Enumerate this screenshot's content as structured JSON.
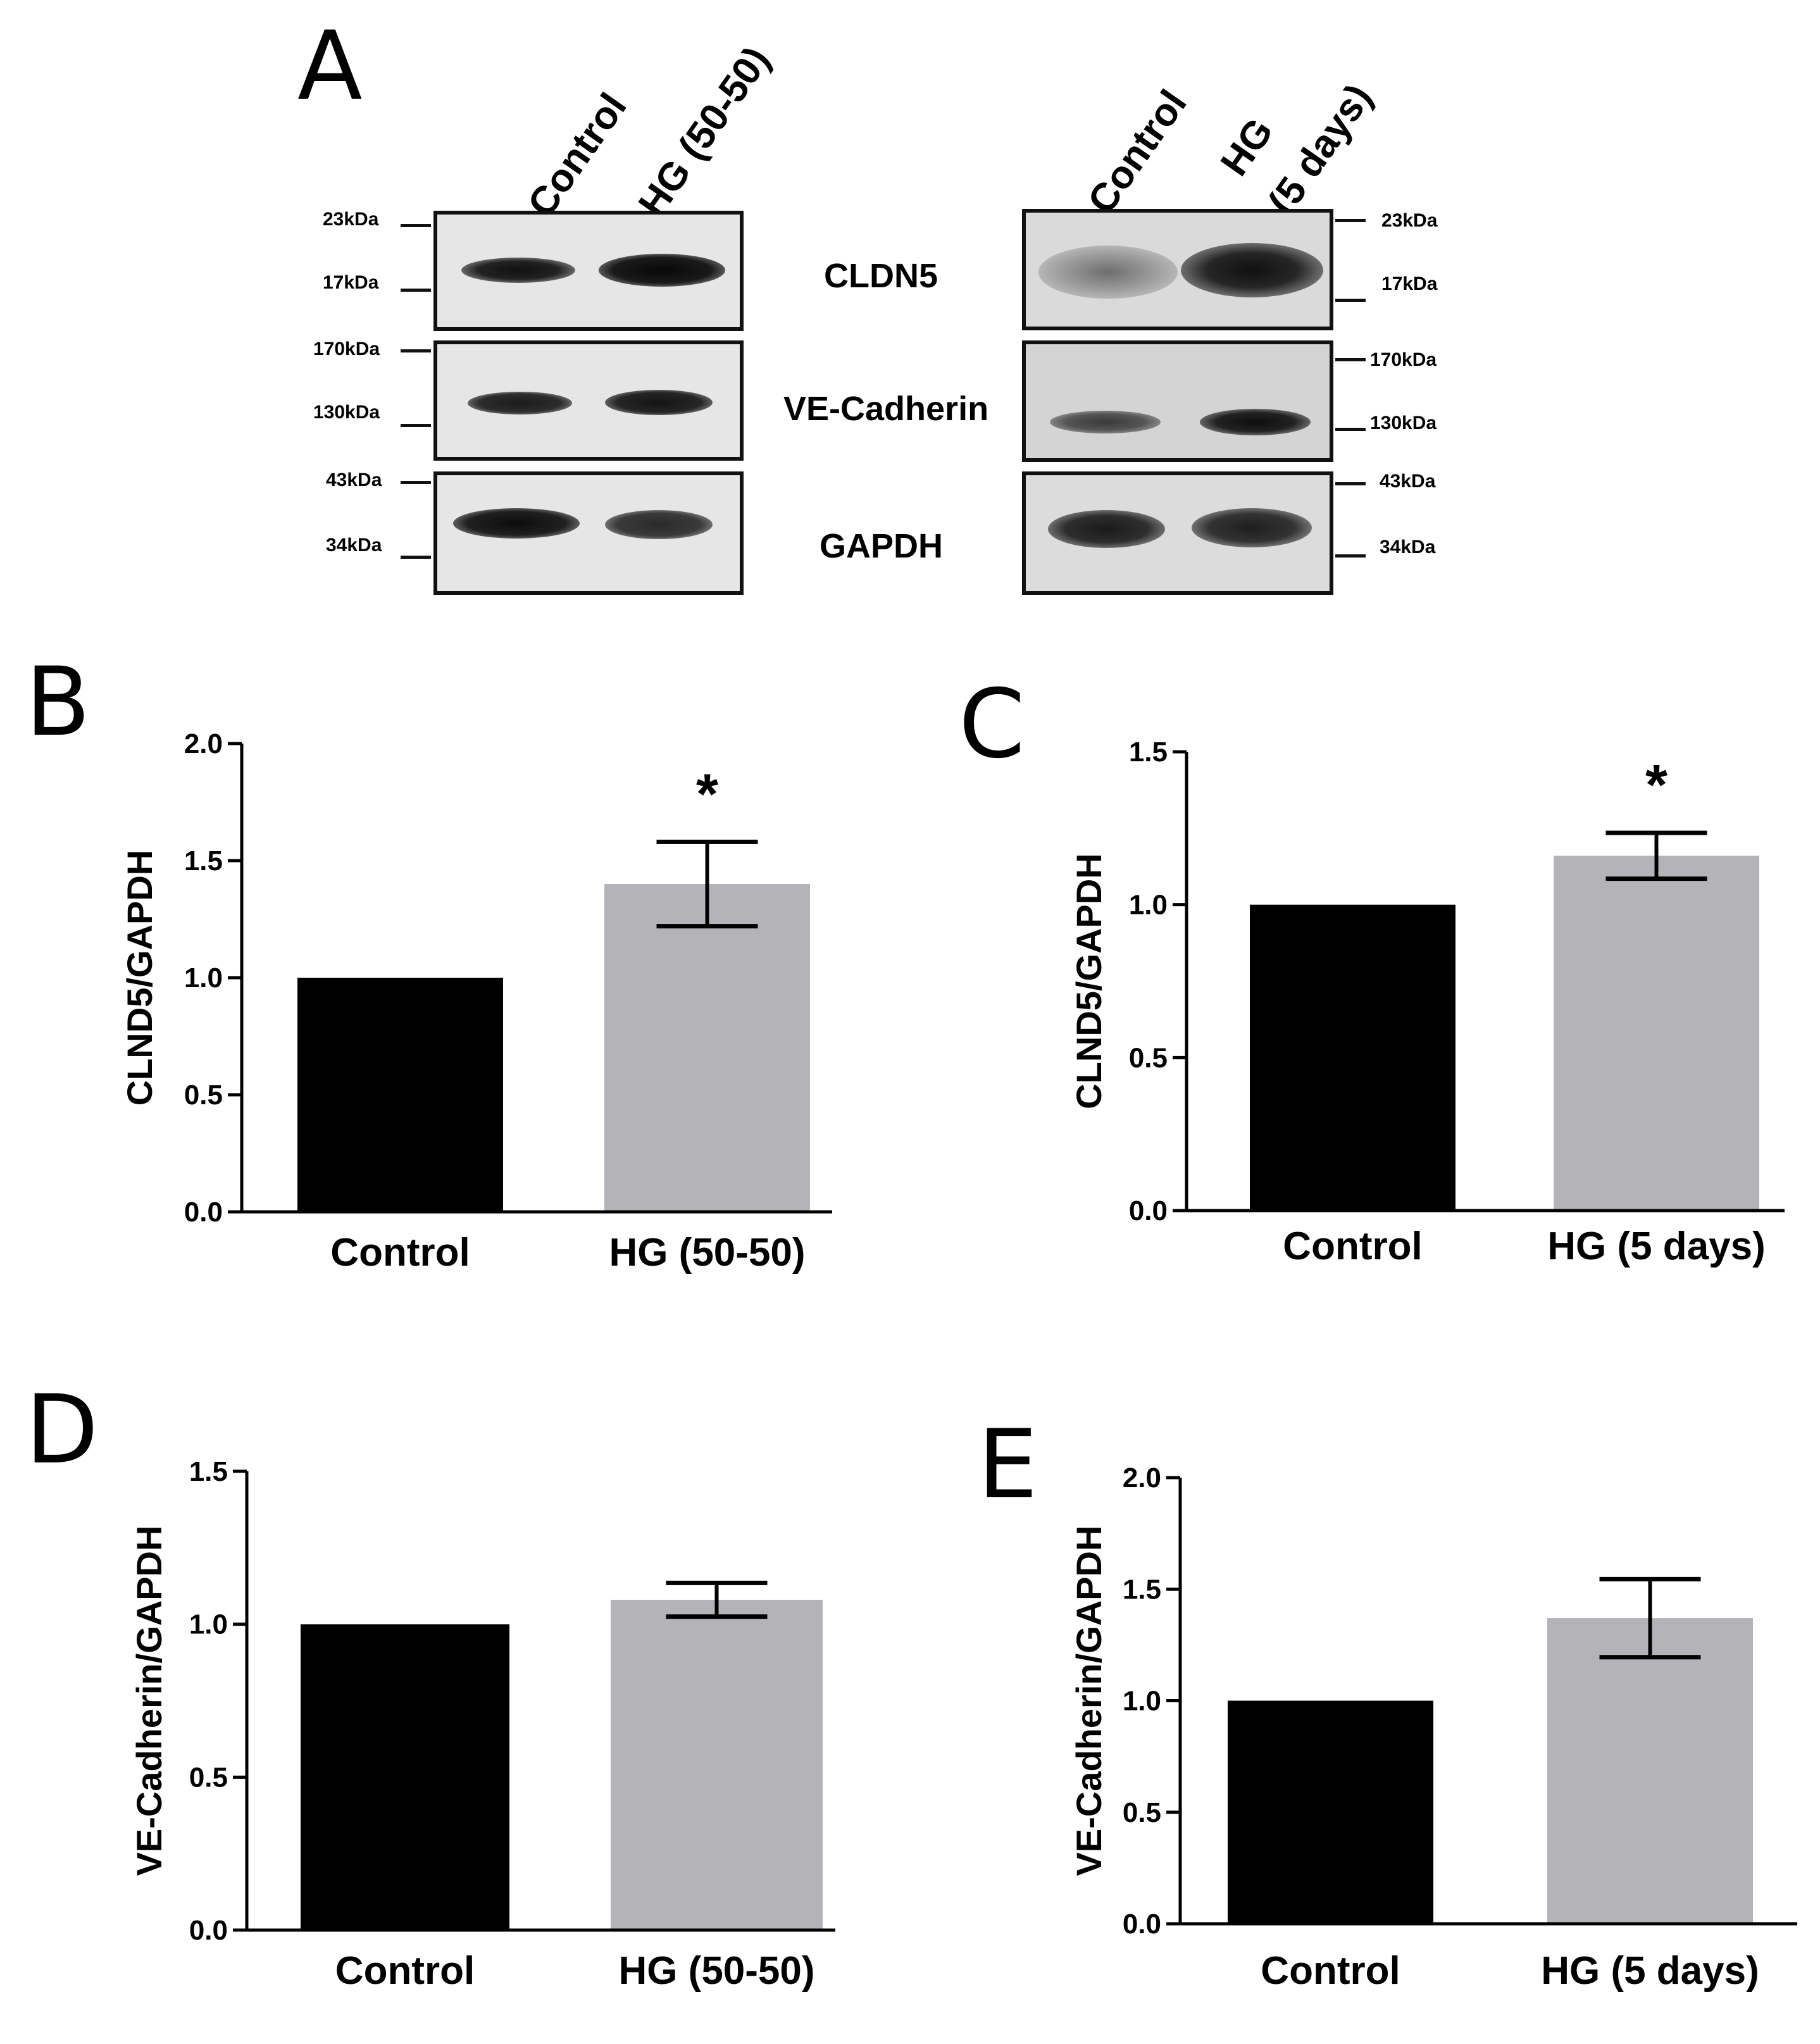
{
  "panel_letters": {
    "a": "A",
    "b": "B",
    "c": "C",
    "d": "D",
    "e": "E"
  },
  "western_blot": {
    "left": {
      "lanes": [
        "Control",
        "HG (50-50)"
      ],
      "markers": [
        "23kDa",
        "17kDa",
        "170kDa",
        "130kDa",
        "43kDa",
        "34kDa"
      ]
    },
    "right": {
      "lanes": [
        "Control",
        "HG",
        "(5 days)"
      ],
      "markers": [
        "23kDa",
        "17kDa",
        "170kDa",
        "130kDa",
        "43kDa",
        "34kDa"
      ]
    },
    "proteins": [
      "CLDN5",
      "VE-Cadherin",
      "GAPDH"
    ]
  },
  "chart_data": [
    {
      "panel": "B",
      "type": "bar",
      "categories": [
        "Control",
        "HG (50-50)"
      ],
      "values": [
        1.0,
        1.4
      ],
      "errors": [
        0,
        0.18
      ],
      "significance": [
        "",
        "*"
      ],
      "ylabel": "CLND5/GAPDH",
      "ylim": [
        0,
        2.0
      ],
      "yticks": [
        "0.0",
        "0.5",
        "1.0",
        "1.5",
        "2.0"
      ],
      "colors": [
        "#000000",
        "#b4b4b8"
      ]
    },
    {
      "panel": "C",
      "type": "bar",
      "categories": [
        "Control",
        "HG (5 days)"
      ],
      "values": [
        1.0,
        1.16
      ],
      "errors": [
        0,
        0.075
      ],
      "significance": [
        "",
        "*"
      ],
      "ylabel": "CLND5/GAPDH",
      "ylim": [
        0,
        1.5
      ],
      "yticks": [
        "0.0",
        "0.5",
        "1.0",
        "1.5"
      ],
      "colors": [
        "#000000",
        "#b4b4b8"
      ]
    },
    {
      "panel": "D",
      "type": "bar",
      "categories": [
        "Control",
        "HG (50-50)"
      ],
      "values": [
        1.0,
        1.08
      ],
      "errors": [
        0,
        0.055
      ],
      "significance": [
        "",
        ""
      ],
      "ylabel": "VE-Cadherin/GAPDH",
      "ylim": [
        0,
        1.5
      ],
      "yticks": [
        "0.0",
        "0.5",
        "1.0",
        "1.5"
      ],
      "colors": [
        "#000000",
        "#b4b4b8"
      ]
    },
    {
      "panel": "E",
      "type": "bar",
      "categories": [
        "Control",
        "HG (5 days)"
      ],
      "values": [
        1.0,
        1.37
      ],
      "errors": [
        0,
        0.175
      ],
      "significance": [
        "",
        ""
      ],
      "ylabel": "VE-Cadherin/GAPDH",
      "ylim": [
        0,
        2.0
      ],
      "yticks": [
        "0.0",
        "0.5",
        "1.0",
        "1.5",
        "2.0"
      ],
      "colors": [
        "#000000",
        "#b4b4b8"
      ]
    }
  ]
}
